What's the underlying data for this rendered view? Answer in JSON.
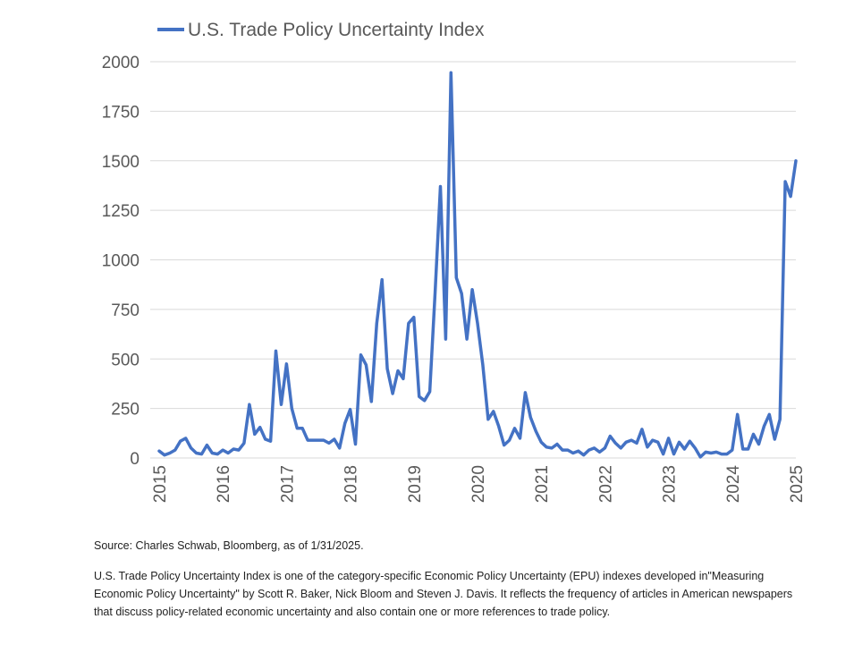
{
  "chart_data": {
    "type": "line",
    "title": "",
    "xlabel": "",
    "ylabel": "",
    "ylim": [
      0,
      2000
    ],
    "xlim": [
      2015,
      2025
    ],
    "yticks": [
      0,
      250,
      500,
      750,
      1000,
      1250,
      1500,
      1750,
      2000
    ],
    "xticks": [
      "2015",
      "2016",
      "2017",
      "2018",
      "2019",
      "2020",
      "2021",
      "2022",
      "2023",
      "2024",
      "2025"
    ],
    "grid": true,
    "legend_position": "top-left",
    "line_color": "#4472c4",
    "series": [
      {
        "name": "U.S. Trade Policy Uncertainty Index",
        "x": [
          2015.0,
          2015.083,
          2015.167,
          2015.25,
          2015.333,
          2015.417,
          2015.5,
          2015.583,
          2015.667,
          2015.75,
          2015.833,
          2015.917,
          2016.0,
          2016.083,
          2016.167,
          2016.25,
          2016.333,
          2016.417,
          2016.5,
          2016.583,
          2016.667,
          2016.75,
          2016.833,
          2016.917,
          2017.0,
          2017.083,
          2017.167,
          2017.25,
          2017.333,
          2017.417,
          2017.5,
          2017.583,
          2017.667,
          2017.75,
          2017.833,
          2017.917,
          2018.0,
          2018.083,
          2018.167,
          2018.25,
          2018.333,
          2018.417,
          2018.5,
          2018.583,
          2018.667,
          2018.75,
          2018.833,
          2018.917,
          2019.0,
          2019.083,
          2019.167,
          2019.25,
          2019.333,
          2019.417,
          2019.5,
          2019.583,
          2019.667,
          2019.75,
          2019.833,
          2019.917,
          2020.0,
          2020.083,
          2020.167,
          2020.25,
          2020.333,
          2020.417,
          2020.5,
          2020.583,
          2020.667,
          2020.75,
          2020.833,
          2020.917,
          2021.0,
          2021.083,
          2021.167,
          2021.25,
          2021.333,
          2021.417,
          2021.5,
          2021.583,
          2021.667,
          2021.75,
          2021.833,
          2021.917,
          2022.0,
          2022.083,
          2022.167,
          2022.25,
          2022.333,
          2022.417,
          2022.5,
          2022.583,
          2022.667,
          2022.75,
          2022.833,
          2022.917,
          2023.0,
          2023.083,
          2023.167,
          2023.25,
          2023.333,
          2023.417,
          2023.5,
          2023.583,
          2023.667,
          2023.75,
          2023.833,
          2023.917,
          2024.0,
          2024.083,
          2024.167,
          2024.25,
          2024.333,
          2024.417,
          2024.5,
          2024.583,
          2024.667,
          2024.75,
          2024.833,
          2024.917,
          2025.0
        ],
        "values": [
          35,
          15,
          25,
          40,
          85,
          100,
          50,
          25,
          20,
          65,
          25,
          20,
          40,
          25,
          45,
          40,
          75,
          270,
          120,
          155,
          95,
          85,
          540,
          270,
          475,
          250,
          150,
          150,
          90,
          90,
          90,
          90,
          75,
          95,
          50,
          175,
          245,
          70,
          520,
          470,
          285,
          680,
          900,
          450,
          325,
          440,
          400,
          680,
          710,
          310,
          290,
          335,
          830,
          1370,
          600,
          1945,
          910,
          830,
          600,
          850,
          680,
          470,
          195,
          235,
          160,
          65,
          90,
          150,
          100,
          330,
          205,
          135,
          80,
          55,
          50,
          70,
          40,
          40,
          25,
          35,
          15,
          40,
          50,
          30,
          50,
          110,
          75,
          50,
          80,
          90,
          75,
          145,
          55,
          90,
          80,
          20,
          100,
          20,
          80,
          45,
          85,
          50,
          5,
          30,
          25,
          30,
          20,
          20,
          40,
          220,
          45,
          45,
          120,
          70,
          160,
          220,
          95,
          195,
          1395,
          1320,
          1500
        ]
      }
    ]
  },
  "footer": {
    "source": "Source: Charles Schwab, Bloomberg, as of 1/31/2025.",
    "note": "U.S. Trade Policy Uncertainty Index is one of the category-specific Economic Policy Uncertainty (EPU) indexes developed in\"Measuring Economic Policy Uncertainty\" by Scott R. Baker, Nick Bloom and Steven J. Davis. It reflects the frequency of articles in American newspapers that discuss policy-related economic uncertainty and also contain one or more references to trade policy."
  }
}
